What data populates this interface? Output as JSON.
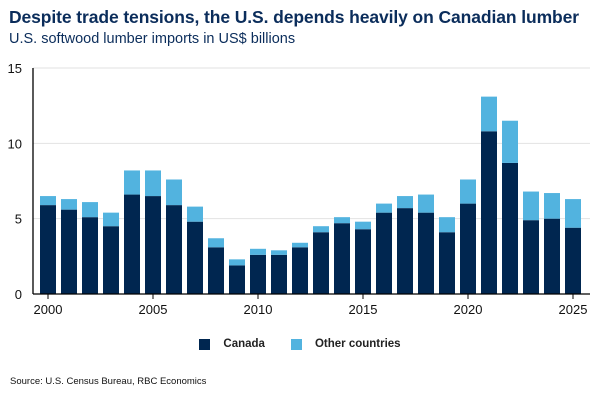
{
  "chart_data": {
    "type": "bar",
    "stacked": true,
    "title": "Despite trade tensions, the U.S. depends heavily on Canadian lumber",
    "subtitle": "U.S. softwood lumber imports in US$ billions",
    "xlabel": "",
    "ylabel": "",
    "ylim": [
      0,
      15
    ],
    "yticks": [
      0,
      5,
      10,
      15
    ],
    "xticks": [
      2000,
      2005,
      2010,
      2015,
      2020,
      2025
    ],
    "grid": true,
    "legend_position": "bottom-center",
    "categories": [
      2000,
      2001,
      2002,
      2003,
      2004,
      2005,
      2006,
      2007,
      2008,
      2009,
      2010,
      2011,
      2012,
      2013,
      2014,
      2015,
      2016,
      2017,
      2018,
      2019,
      2020,
      2021,
      2022,
      2023,
      2024,
      2025
    ],
    "series": [
      {
        "name": "Canada",
        "color": "#002650",
        "values": [
          5.9,
          5.6,
          5.1,
          4.5,
          6.6,
          6.5,
          5.9,
          4.8,
          3.1,
          1.9,
          2.6,
          2.6,
          3.1,
          4.1,
          4.7,
          4.3,
          5.4,
          5.7,
          5.4,
          4.1,
          6.0,
          10.8,
          8.7,
          4.9,
          5.0,
          4.4
        ]
      },
      {
        "name": "Other countries",
        "color": "#52b3df",
        "values": [
          0.6,
          0.7,
          1.0,
          0.9,
          1.6,
          1.7,
          1.7,
          1.0,
          0.6,
          0.4,
          0.4,
          0.3,
          0.3,
          0.4,
          0.4,
          0.5,
          0.6,
          0.8,
          1.2,
          1.0,
          1.6,
          2.3,
          2.8,
          1.9,
          1.7,
          1.9
        ]
      }
    ],
    "source": "Source: U.S. Census Bureau, RBC Economics"
  }
}
